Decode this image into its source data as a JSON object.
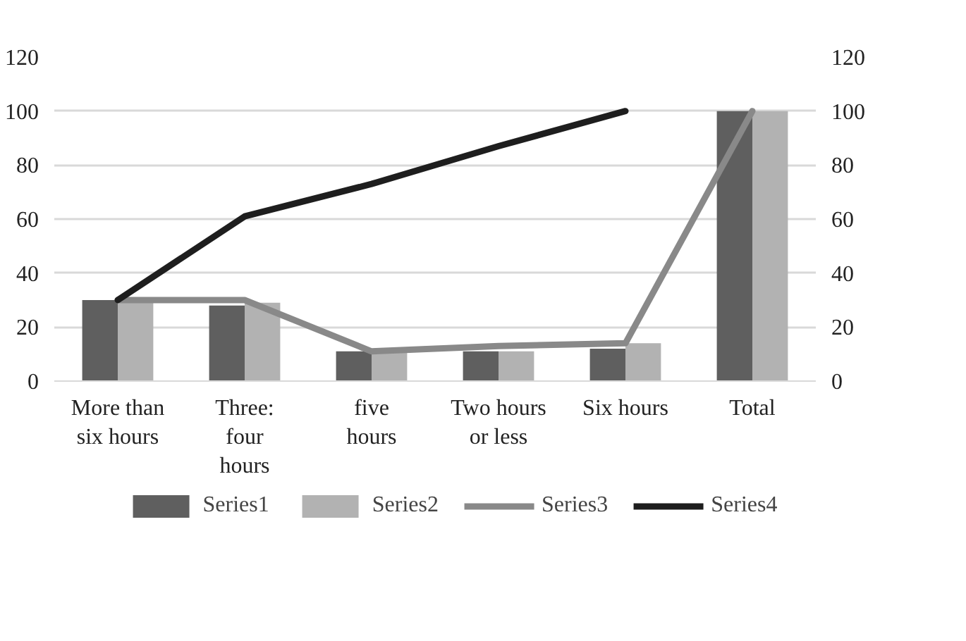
{
  "chart_data": {
    "type": "bar",
    "categories": [
      "More than six hours",
      "Three: four hours",
      "five hours",
      "Two hours or less",
      "Six hours",
      "Total"
    ],
    "series": [
      {
        "name": "Series1",
        "color": "#5f5f5f",
        "values": [
          30,
          28,
          11,
          11,
          12,
          100
        ]
      },
      {
        "name": "Series2",
        "color": "#b2b2b2",
        "values": [
          29,
          29,
          11,
          11,
          14,
          100
        ]
      },
      {
        "name": "Series3",
        "type": "line",
        "color": "#898989",
        "values": [
          30,
          30,
          11,
          13,
          14,
          100
        ]
      },
      {
        "name": "Series4",
        "type": "line",
        "color": "#1e1e1e",
        "values": [
          30,
          61,
          73,
          87,
          100,
          null
        ]
      }
    ],
    "ylim": [
      0,
      120
    ],
    "yticks": [
      0,
      20,
      40,
      60,
      80,
      100,
      120
    ],
    "y2lim": [
      0,
      120
    ],
    "y2ticks": [
      0,
      20,
      40,
      60,
      80,
      100,
      120
    ],
    "grid": "y",
    "legend": "bottom",
    "marker": "none",
    "line_style": "solid"
  }
}
